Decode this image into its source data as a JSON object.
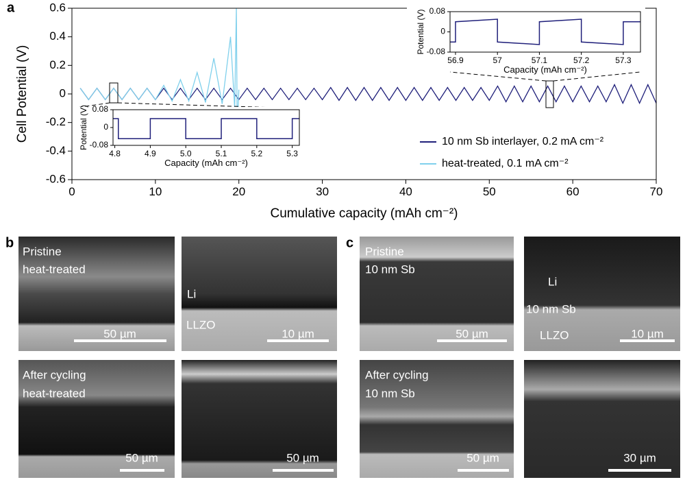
{
  "chart_data": [
    {
      "type": "line",
      "xlabel": "Cumulative capacity (mAh cm⁻²)",
      "ylabel": "Cell Potential (V)",
      "xlim": [
        0,
        70
      ],
      "xticks": [
        0,
        10,
        20,
        30,
        40,
        50,
        60,
        70
      ],
      "ylim": [
        -0.6,
        0.6
      ],
      "yticks": [
        0.6,
        0.4,
        0.2,
        0,
        -0.2,
        -0.4,
        -0.6
      ],
      "legend": "lower right",
      "series": [
        {
          "name": "10 nm Sb interlayer, 0.2 mA cm⁻²",
          "color": "#1f1f7a",
          "x": [
            1,
            2,
            3,
            4,
            5,
            6,
            7,
            8,
            9,
            10,
            11,
            12,
            13,
            14,
            15,
            16,
            17,
            18,
            19,
            20,
            21,
            22,
            23,
            24,
            25,
            26,
            27,
            28,
            29,
            30,
            31,
            32,
            33,
            34,
            35,
            36,
            37,
            38,
            39,
            40,
            41,
            42,
            43,
            44,
            45,
            46,
            47,
            48,
            49,
            50,
            51,
            52,
            53,
            54,
            55,
            56,
            57,
            58,
            59,
            60,
            61,
            62,
            63,
            64,
            65,
            66,
            67,
            68,
            69,
            70
          ],
          "values": [
            0.04,
            -0.04,
            0.04,
            -0.04,
            0.04,
            -0.04,
            0.04,
            -0.04,
            0.04,
            -0.04,
            0.04,
            -0.04,
            0.04,
            -0.04,
            0.04,
            -0.04,
            0.04,
            -0.04,
            0.04,
            -0.04,
            0.04,
            -0.04,
            0.04,
            -0.04,
            0.04,
            -0.04,
            0.04,
            -0.04,
            0.04,
            -0.04,
            0.045,
            -0.045,
            0.045,
            -0.045,
            0.045,
            -0.045,
            0.045,
            -0.045,
            0.045,
            -0.045,
            0.045,
            -0.045,
            0.045,
            -0.045,
            0.045,
            -0.045,
            0.045,
            -0.045,
            0.045,
            -0.045,
            0.055,
            -0.055,
            0.055,
            -0.055,
            0.055,
            -0.055,
            0.055,
            -0.055,
            0.055,
            -0.055,
            0.055,
            -0.055,
            0.055,
            -0.055,
            0.065,
            -0.065,
            0.065,
            -0.065,
            0.065,
            -0.065
          ]
        },
        {
          "name": "heat-treated, 0.1 mA cm⁻²",
          "color": "#7fd0ec",
          "x": [
            1,
            2,
            3,
            4,
            5,
            6,
            7,
            8,
            9,
            10,
            11,
            12,
            13,
            14,
            15,
            16,
            17,
            18,
            19,
            19.5,
            19.7,
            19.8,
            20
          ],
          "values": [
            0.04,
            -0.04,
            0.04,
            -0.04,
            0.04,
            -0.04,
            0.04,
            -0.04,
            0.04,
            -0.04,
            0.06,
            -0.05,
            0.1,
            -0.05,
            0.15,
            -0.06,
            0.25,
            -0.07,
            0.4,
            -0.1,
            0.6,
            -0.25,
            0.03
          ]
        }
      ]
    },
    {
      "type": "line",
      "xlabel": "Capacity (mAh cm⁻²)",
      "ylabel": "Potential (V)",
      "xlim": [
        4.795,
        5.32
      ],
      "xticks": [
        4.8,
        4.9,
        {
          "value": 5,
          "label": "5.0"
        },
        5.1,
        5.2,
        5.3
      ],
      "ylim": [
        -0.08,
        0.08
      ],
      "yticks": [
        0.08,
        0,
        -0.08
      ],
      "series": [
        {
          "color": "#1f1f7a",
          "x": [
            4.795,
            4.81,
            4.81,
            4.9,
            4.9,
            5,
            5,
            5.1,
            5.1,
            5.2,
            5.2,
            5.3,
            5.3,
            5.32
          ],
          "values": [
            0.04,
            0.04,
            -0.05,
            -0.05,
            0.04,
            0.04,
            -0.05,
            -0.05,
            0.04,
            0.04,
            -0.05,
            -0.05,
            0.04,
            0.04
          ]
        }
      ]
    },
    {
      "type": "line",
      "xlabel": "Capacity (mAh cm⁻²)",
      "ylabel": "Potential (V)",
      "xlim": [
        56.887,
        57.341
      ],
      "xticks": [
        56.9,
        57,
        57.1,
        57.2,
        57.3
      ],
      "ylim": [
        -0.08,
        0.08
      ],
      "yticks": [
        0.08,
        0,
        -0.08
      ],
      "series": [
        {
          "color": "#1f1f7a",
          "x": [
            56.887,
            56.9,
            56.9,
            57,
            57,
            57.1,
            57.1,
            57.2,
            57.2,
            57.3,
            57.3,
            57.341
          ],
          "values": [
            -0.04,
            -0.04,
            0.04,
            0.05,
            -0.04,
            -0.05,
            0.04,
            0.05,
            -0.04,
            -0.05,
            0.04,
            0.04
          ]
        }
      ]
    }
  ],
  "figure": {
    "panel_labels": [
      "a",
      "b",
      "c"
    ],
    "images": [
      {
        "texts": [
          "Pristine",
          "heat-treated"
        ],
        "scale_bar": "50 µm"
      },
      {
        "texts": [
          "Li",
          "LLZO"
        ],
        "scale_bar": "10 µm"
      },
      {
        "texts": [
          "Pristine",
          "10 nm Sb"
        ],
        "scale_bar": "50 µm"
      },
      {
        "texts": [
          "Li",
          "10 nm Sb",
          "LLZO"
        ],
        "scale_bar": "10 µm"
      },
      {
        "texts": [
          "After cycling",
          "heat-treated"
        ],
        "scale_bar": "50 µm"
      },
      {
        "texts": [],
        "scale_bar": "50 µm"
      },
      {
        "texts": [
          "After cycling",
          "10 nm Sb"
        ],
        "scale_bar": "50 µm"
      },
      {
        "texts": [],
        "scale_bar": "30 µm"
      }
    ]
  }
}
